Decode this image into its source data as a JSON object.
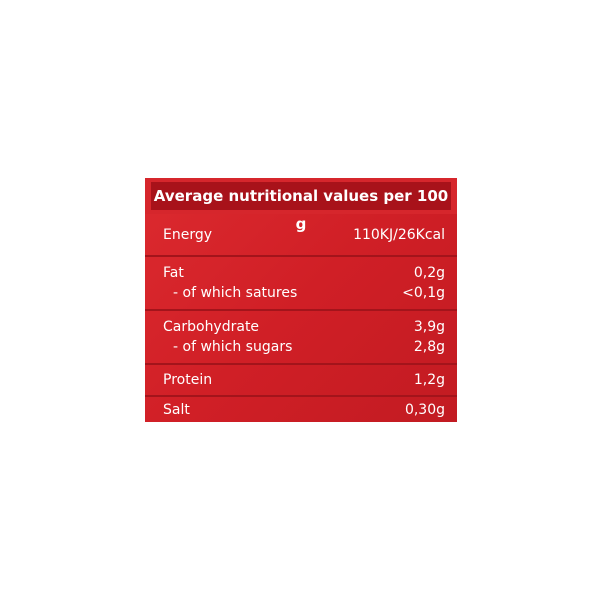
{
  "header": {
    "title": "Average nutritional values per 100 g"
  },
  "table": {
    "groups": [
      {
        "rows": [
          {
            "label": "Energy",
            "value": "110KJ/26Kcal"
          }
        ]
      },
      {
        "rows": [
          {
            "label": "Fat",
            "value": "0,2g"
          },
          {
            "label": "- of which satures",
            "value": "<0,1g"
          }
        ]
      },
      {
        "rows": [
          {
            "label": "Carbohydrate",
            "value": "3,9g"
          },
          {
            "label": "- of which sugars",
            "value": "2,8g"
          }
        ]
      },
      {
        "rows": [
          {
            "label": "Protein",
            "value": "1,2g"
          }
        ]
      },
      {
        "rows": [
          {
            "label": "Salt",
            "value": "0,30g"
          }
        ]
      }
    ]
  }
}
